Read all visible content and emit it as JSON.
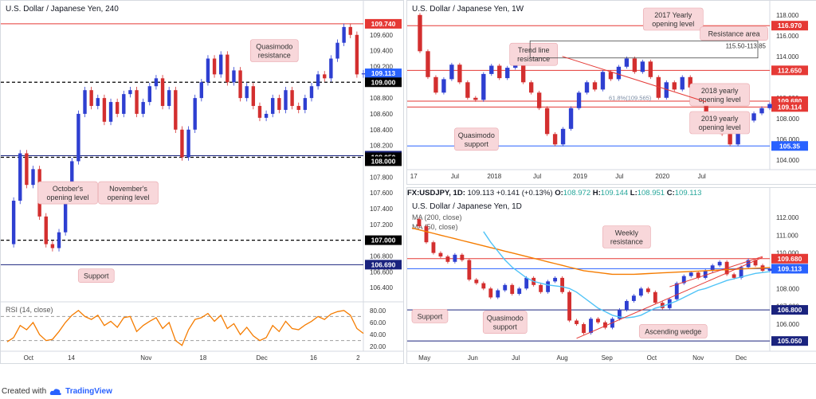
{
  "footer": {
    "created_with": "Created with",
    "brand": "TradingView"
  },
  "chart_data": [
    {
      "id": "h4",
      "type": "line",
      "title": "U.S. Dollar / Japanese Yen, 240",
      "ylim": [
        106.3,
        109.85
      ],
      "y_ticks": [
        "109.600",
        "109.400",
        "109.200",
        "108.800",
        "108.600",
        "108.400",
        "108.200",
        "107.800",
        "107.600",
        "107.400",
        "107.200",
        "106.800",
        "106.600",
        "106.400"
      ],
      "y_tick_values": [
        109.6,
        109.4,
        109.2,
        108.8,
        108.6,
        108.4,
        108.2,
        107.8,
        107.6,
        107.4,
        107.2,
        106.8,
        106.6,
        106.4
      ],
      "x_ticks": [
        "Oct",
        "14",
        "Nov",
        "18",
        "Dec",
        "16",
        "2"
      ],
      "x_tick_pos": [
        0.06,
        0.18,
        0.39,
        0.55,
        0.715,
        0.86,
        0.985
      ],
      "price": [
        106.95,
        107.5,
        108.1,
        107.7,
        107.9,
        107.3,
        106.95,
        106.9,
        107.1,
        107.6,
        108.0,
        108.6,
        108.9,
        108.7,
        108.8,
        108.5,
        108.75,
        108.6,
        108.85,
        108.9,
        108.6,
        108.75,
        108.95,
        109.05,
        108.7,
        108.9,
        108.4,
        108.05,
        108.4,
        108.8,
        109.0,
        109.3,
        109.1,
        109.35,
        109.0,
        109.15,
        108.8,
        108.95,
        108.7,
        108.55,
        108.6,
        108.8,
        108.65,
        108.9,
        108.7,
        108.65,
        108.8,
        108.95,
        109.1,
        109.05,
        109.3,
        109.5,
        109.7,
        109.6,
        109.1,
        109.113
      ],
      "rsi": [
        28,
        35,
        55,
        48,
        60,
        40,
        30,
        32,
        45,
        60,
        72,
        80,
        70,
        65,
        72,
        55,
        62,
        52,
        68,
        70,
        45,
        55,
        62,
        68,
        50,
        60,
        30,
        22,
        48,
        65,
        68,
        75,
        62,
        72,
        50,
        58,
        40,
        52,
        38,
        30,
        35,
        55,
        45,
        62,
        50,
        48,
        56,
        62,
        70,
        65,
        74,
        78,
        80,
        72,
        50,
        42
      ],
      "rsi_ticks": [
        "80.00",
        "60.00",
        "40.00",
        "20.00"
      ],
      "rsi_tick_values": [
        80,
        60,
        40,
        20
      ],
      "rsi_label": "RSI (14, close)",
      "levels": [
        {
          "value": 109.74,
          "label": "109.740",
          "color": "#e53935",
          "style": "solid"
        },
        {
          "value": 109.113,
          "label": "109.113",
          "color": "#2962ff",
          "style": "none"
        },
        {
          "value": 109.0,
          "label": "109.000",
          "color": "#000000",
          "style": "dashed"
        },
        {
          "value": 108.07,
          "label": "108.070",
          "color": "#1a237e",
          "style": "solid"
        },
        {
          "value": 108.05,
          "label": "108.050",
          "color": "#000000",
          "style": "dashed"
        },
        {
          "value": 108.0,
          "label": "108.000",
          "color": "#000000",
          "style": "none"
        },
        {
          "value": 107.0,
          "label": "107.000",
          "color": "#000000",
          "style": "dashed"
        },
        {
          "value": 106.69,
          "label": "106.690",
          "color": "#1a237e",
          "style": "solid"
        }
      ],
      "annotations": [
        {
          "text": "Quasimodo resistance",
          "x": 0.75,
          "y": 109.4
        },
        {
          "text": "October's opening level",
          "x": 0.17,
          "y": 107.6
        },
        {
          "text": "November's opening level",
          "x": 0.34,
          "y": 107.6
        },
        {
          "text": "Support",
          "x": 0.25,
          "y": 106.55
        }
      ]
    },
    {
      "id": "weekly",
      "type": "line",
      "title": "U.S. Dollar / Japanese Yen, 1W",
      "ylim": [
        103.6,
        118.6
      ],
      "y_ticks": [
        "118.000",
        "116.000",
        "114.000",
        "110.000",
        "108.000",
        "106.000",
        "104.000"
      ],
      "y_tick_values": [
        118,
        116,
        114,
        110,
        108,
        106,
        104
      ],
      "x_ticks": [
        "17",
        "Jul",
        "2018",
        "Jul",
        "2019",
        "Jul",
        "2020",
        "Jul"
      ],
      "x_tick_pos": [
        0.005,
        0.12,
        0.23,
        0.35,
        0.47,
        0.58,
        0.7,
        0.81
      ],
      "price": [
        118.0,
        114.5,
        112.0,
        110.5,
        111.8,
        113.2,
        111.5,
        110.0,
        109.8,
        112.3,
        113.1,
        111.9,
        112.9,
        113.5,
        111.5,
        110.5,
        109.0,
        106.5,
        105.5,
        107.0,
        109.0,
        110.5,
        111.5,
        110.8,
        112.5,
        111.8,
        113.0,
        113.8,
        112.5,
        113.5,
        112.0,
        110.0,
        111.5,
        110.8,
        112.0,
        111.0,
        109.5,
        108.0,
        107.0,
        106.5,
        105.5,
        106.8,
        107.8,
        108.5,
        109.0,
        109.4
      ],
      "levels": [
        {
          "value": 116.97,
          "label": "116.970",
          "color": "#e53935"
        },
        {
          "value": 112.65,
          "label": "112.650",
          "color": "#e53935"
        },
        {
          "value": 109.68,
          "label": "109.680",
          "color": "#e53935"
        },
        {
          "value": 109.114,
          "label": "109.114",
          "color": "#e53935"
        },
        {
          "value": 105.35,
          "label": "105.35",
          "color": "#2962ff"
        }
      ],
      "resistance_area_label": "115.50-113.85",
      "fib_label": "61.8%(109.565)",
      "annotations": [
        {
          "text": "2017 Yearly opening level",
          "x": 0.73,
          "y": 117.6
        },
        {
          "text": "Resistance area",
          "x": 0.9,
          "y": 116.2
        },
        {
          "text": "Trend line resistance",
          "x": 0.34,
          "y": 114.2
        },
        {
          "text": "2018 yearly opening level",
          "x": 0.86,
          "y": 110.3
        },
        {
          "text": "2019 yearly opening level",
          "x": 0.86,
          "y": 107.6
        },
        {
          "text": "Quasimodo support",
          "x": 0.18,
          "y": 106.0
        }
      ]
    },
    {
      "id": "daily",
      "type": "line",
      "title": "U.S. Dollar / Japanese Yen, 1D",
      "ohlc": {
        "symbol": "FX:USDJPY, 1D",
        "last": "109.113",
        "change": "+0.141 (+0.13%)",
        "o": "108.972",
        "h": "109.144",
        "l": "108.951",
        "c": "109.113"
      },
      "ylim": [
        104.7,
        112.4
      ],
      "y_ticks": [
        "112.000",
        "111.000",
        "110.000",
        "108.000",
        "107.000",
        "106.000"
      ],
      "y_tick_values": [
        112,
        111,
        110,
        108,
        107,
        106
      ],
      "x_ticks": [
        "May",
        "Jun",
        "Jul",
        "Aug",
        "Sep",
        "Oct",
        "Nov",
        "Dec"
      ],
      "x_tick_pos": [
        0.035,
        0.17,
        0.29,
        0.42,
        0.545,
        0.67,
        0.8,
        0.92
      ],
      "price": [
        111.9,
        111.5,
        110.6,
        110.0,
        109.8,
        109.5,
        109.9,
        109.6,
        108.5,
        108.3,
        108.0,
        107.5,
        107.9,
        108.2,
        107.7,
        108.0,
        108.6,
        108.2,
        107.8,
        108.4,
        108.6,
        107.8,
        106.2,
        106.0,
        105.5,
        106.3,
        106.1,
        105.8,
        106.3,
        106.8,
        107.3,
        107.6,
        108.0,
        107.8,
        107.2,
        106.9,
        107.4,
        108.3,
        108.7,
        108.9,
        108.6,
        109.0,
        109.3,
        109.5,
        108.8,
        108.6,
        109.2,
        109.6,
        109.3,
        109.0,
        109.113
      ],
      "ma200": [
        111.4,
        111.3,
        111.2,
        111.1,
        111.0,
        110.9,
        110.8,
        110.7,
        110.6,
        110.5,
        110.4,
        110.3,
        110.2,
        110.1,
        110.0,
        109.9,
        109.8,
        109.7,
        109.6,
        109.5,
        109.4,
        109.3,
        109.2,
        109.1,
        109.0,
        108.95,
        108.9,
        108.85,
        108.8,
        108.8,
        108.8,
        108.8,
        108.82,
        108.84,
        108.86,
        108.88,
        108.9,
        108.92,
        108.94,
        108.96,
        108.98,
        109.0,
        109.02,
        109.04,
        109.06,
        109.08,
        109.1,
        109.12,
        109.14,
        109.16,
        109.18
      ],
      "ma50": [
        null,
        null,
        null,
        null,
        null,
        null,
        null,
        null,
        null,
        null,
        111.2,
        110.6,
        110.1,
        109.6,
        109.2,
        108.9,
        108.6,
        108.4,
        108.3,
        108.2,
        108.15,
        108.1,
        108.0,
        107.8,
        107.5,
        107.2,
        106.9,
        106.7,
        106.5,
        106.4,
        106.35,
        106.4,
        106.5,
        106.7,
        106.9,
        107.0,
        107.15,
        107.3,
        107.5,
        107.7,
        107.9,
        108.0,
        108.15,
        108.3,
        108.45,
        108.55,
        108.65,
        108.75,
        108.85,
        108.9,
        108.95
      ],
      "ma200_label": "MA (200, close)",
      "ma50_label": "MA (50, close)",
      "levels": [
        {
          "value": 109.68,
          "label": "109.680",
          "color": "#e53935"
        },
        {
          "value": 109.113,
          "label": "109.113",
          "color": "#2962ff"
        },
        {
          "value": 106.8,
          "label": "106.800",
          "color": "#1a237e"
        },
        {
          "value": 105.05,
          "label": "105.050",
          "color": "#1a237e"
        }
      ],
      "annotations": [
        {
          "text": "Weekly resistance",
          "x": 0.6,
          "y": 110.9
        },
        {
          "text": "Support",
          "x": 0.05,
          "y": 106.45
        },
        {
          "text": "Quasimodo support",
          "x": 0.26,
          "y": 106.1
        },
        {
          "text": "Ascending wedge",
          "x": 0.73,
          "y": 105.6
        }
      ]
    }
  ]
}
